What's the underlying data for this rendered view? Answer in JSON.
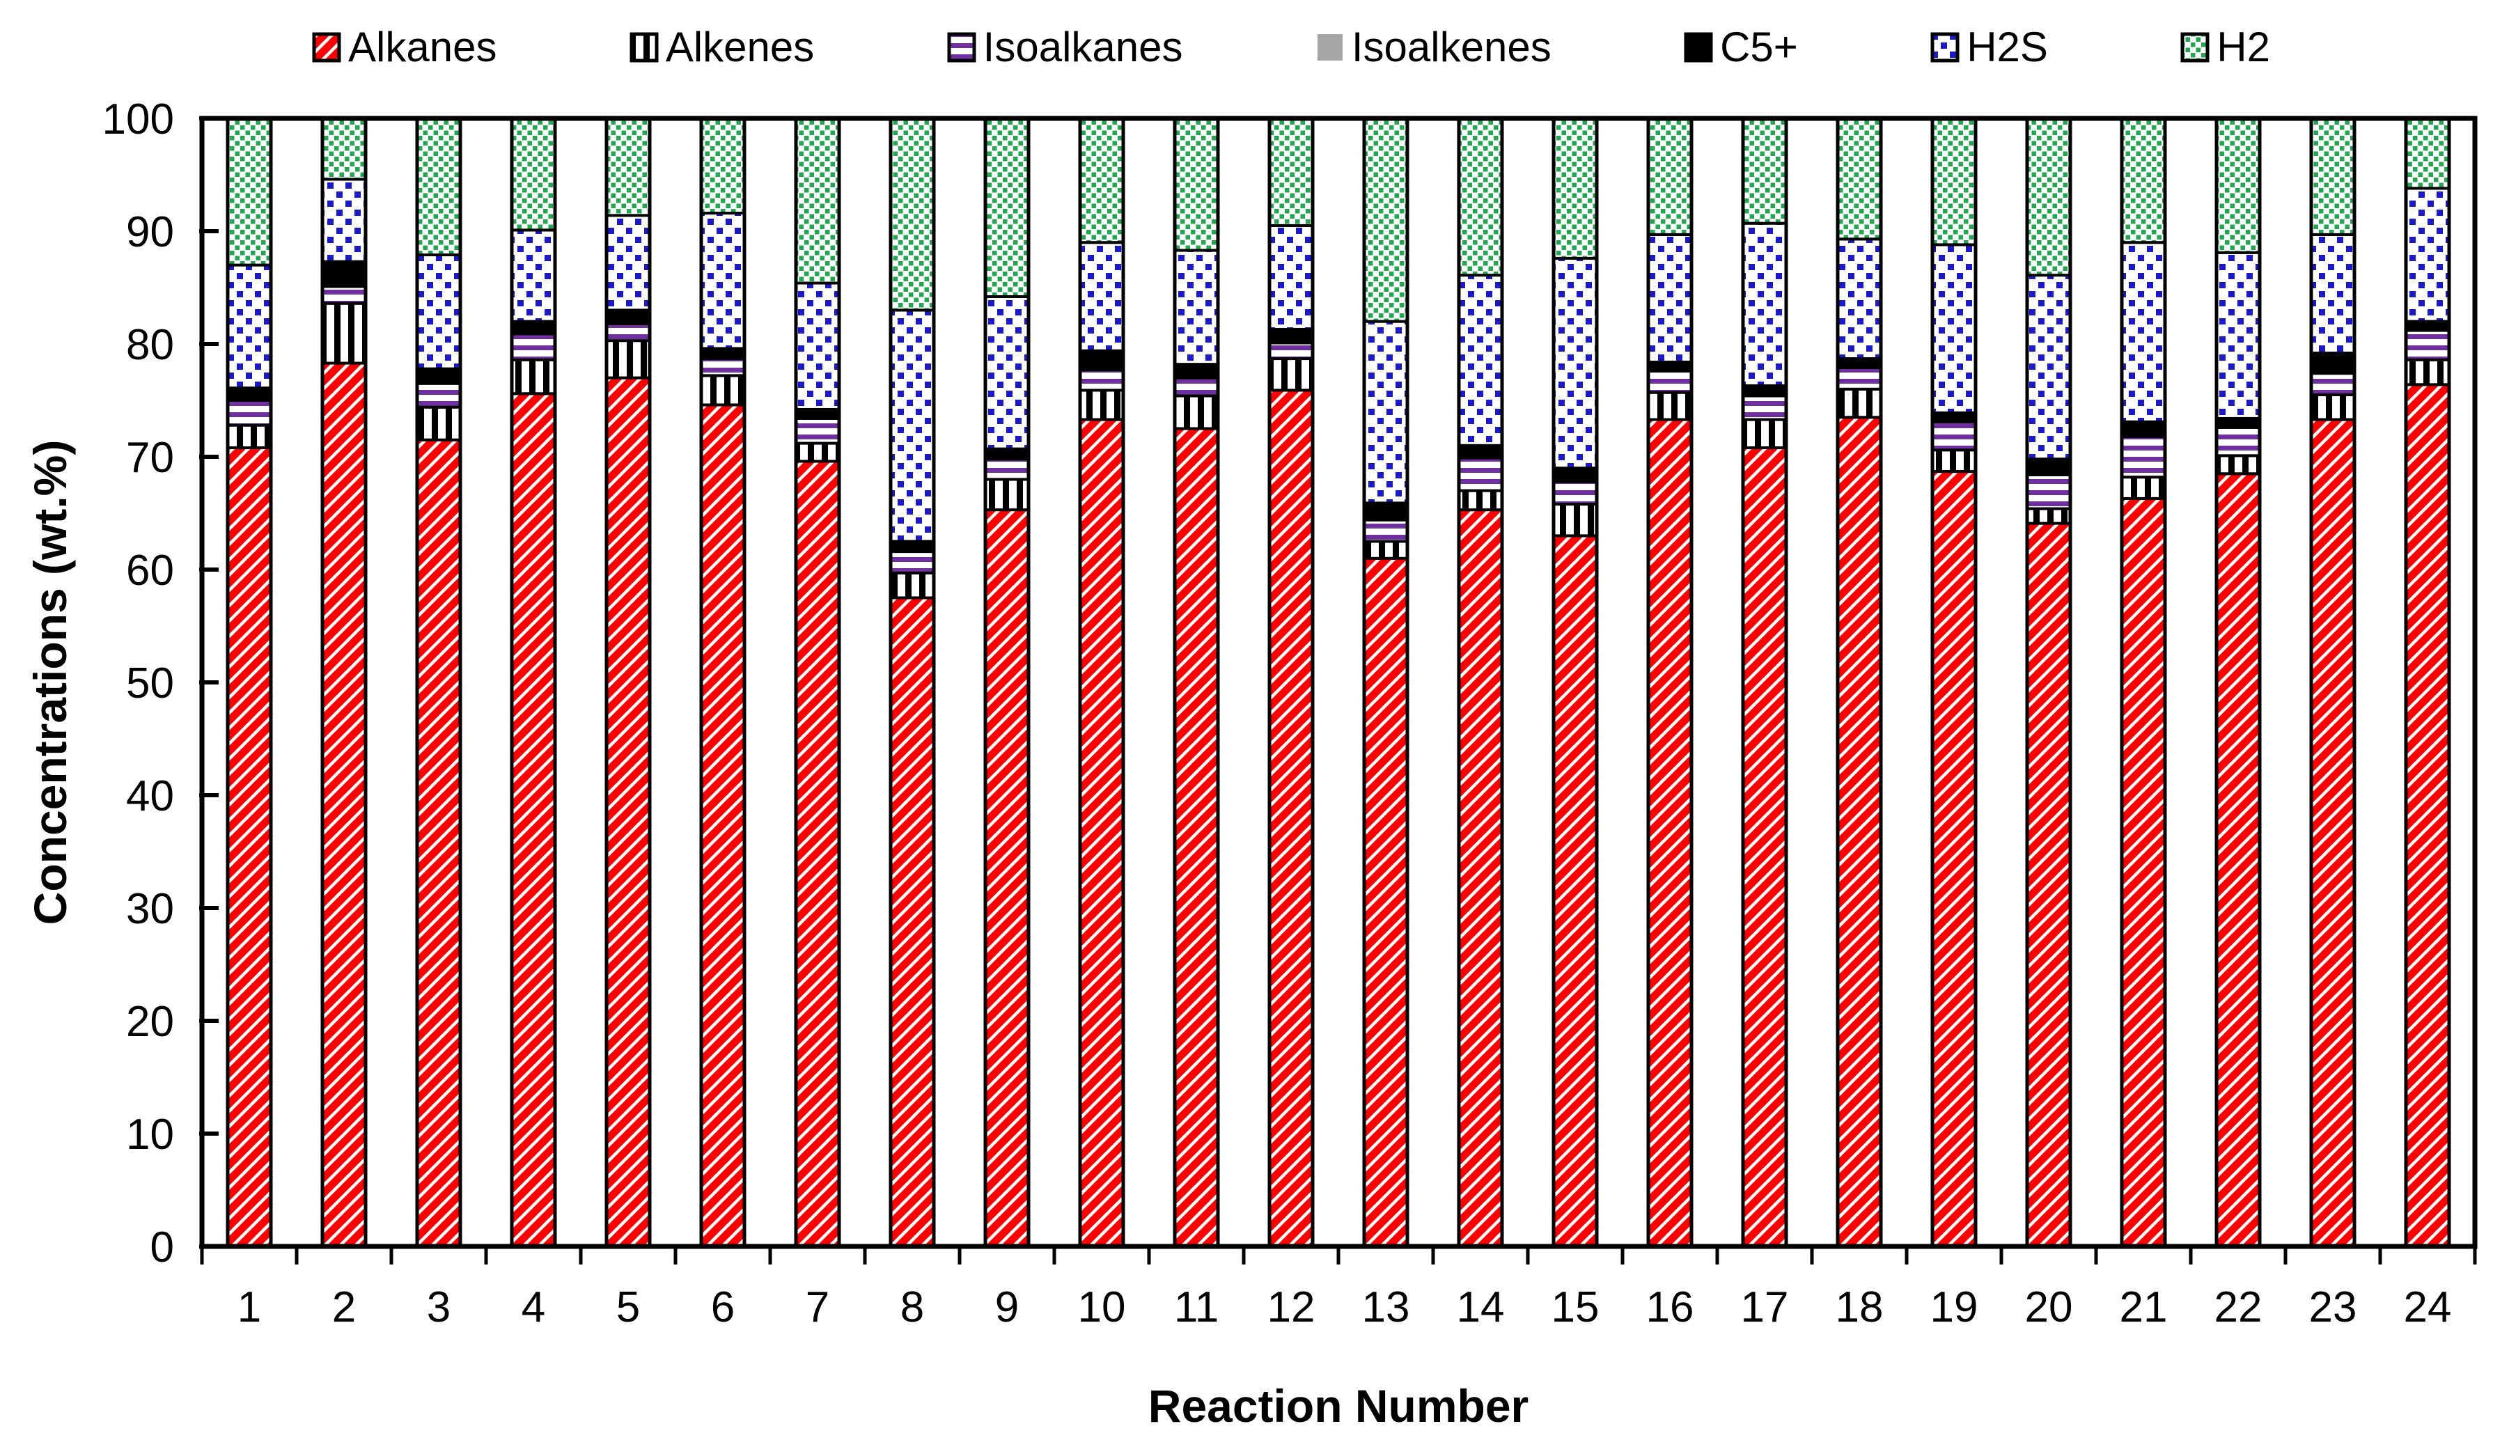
{
  "chart_data": {
    "type": "bar",
    "stacked": true,
    "xlabel": "Reaction Number",
    "ylabel": "Concentrations (wt.%)",
    "ylim": [
      0,
      100
    ],
    "yticks": [
      0,
      10,
      20,
      30,
      40,
      50,
      60,
      70,
      80,
      90,
      100
    ],
    "grid": false,
    "legend_position": "top",
    "categories": [
      "1",
      "2",
      "3",
      "4",
      "5",
      "6",
      "7",
      "8",
      "9",
      "10",
      "11",
      "12",
      "13",
      "14",
      "15",
      "16",
      "17",
      "18",
      "19",
      "20",
      "21",
      "22",
      "23",
      "24"
    ],
    "series": [
      {
        "name": "Alkanes",
        "swatch": "alkanes",
        "values": [
          70.8,
          78.3,
          71.5,
          75.6,
          77.0,
          74.6,
          69.6,
          57.5,
          65.3,
          73.3,
          72.5,
          75.9,
          61.0,
          65.3,
          63.0,
          73.3,
          70.8,
          73.5,
          68.7,
          64.1,
          66.3,
          68.5,
          73.3,
          76.4
        ]
      },
      {
        "name": "Alkenes",
        "swatch": "alkenes",
        "values": [
          2.0,
          5.3,
          2.9,
          3.0,
          3.3,
          2.6,
          1.6,
          2.2,
          2.7,
          2.6,
          2.9,
          2.8,
          1.5,
          1.7,
          2.8,
          2.4,
          2.5,
          2.5,
          1.9,
          1.3,
          1.9,
          1.6,
          2.2,
          2.2
        ]
      },
      {
        "name": "Isoalkanes",
        "swatch": "isoalkanes",
        "values": [
          2.2,
          1.5,
          2.1,
          2.3,
          1.5,
          1.5,
          2.2,
          1.9,
          1.8,
          1.8,
          1.6,
          1.4,
          1.9,
          2.9,
          2.0,
          1.9,
          2.1,
          1.9,
          2.5,
          3.0,
          3.6,
          2.5,
          1.9,
          2.6
        ]
      },
      {
        "name": "Isoalkenes",
        "swatch": "isoalkenes",
        "values": [
          0.2,
          0.2,
          0.2,
          0.2,
          0.2,
          0.2,
          0.2,
          0.2,
          0.2,
          0.2,
          0.2,
          0.2,
          0.2,
          0.2,
          0.2,
          0.2,
          0.2,
          0.2,
          0.2,
          0.2,
          0.2,
          0.2,
          0.2,
          0.2
        ]
      },
      {
        "name": "C5+",
        "swatch": "c5",
        "values": [
          0.9,
          2.0,
          1.1,
          0.9,
          1.0,
          0.7,
          0.6,
          0.7,
          0.7,
          1.5,
          1.0,
          1.0,
          1.3,
          0.9,
          1.0,
          0.6,
          0.7,
          0.6,
          0.6,
          1.2,
          1.1,
          0.6,
          1.6,
          0.6
        ]
      },
      {
        "name": "H2S",
        "swatch": "h2s",
        "values": [
          10.9,
          7.3,
          10.1,
          8.1,
          8.4,
          12.0,
          11.2,
          20.5,
          13.5,
          9.6,
          10.1,
          9.2,
          16.1,
          15.1,
          18.6,
          11.3,
          14.4,
          10.6,
          14.9,
          16.3,
          15.9,
          14.7,
          10.5,
          11.8
        ]
      },
      {
        "name": "H2",
        "swatch": "h2",
        "values": [
          13.0,
          5.4,
          12.1,
          9.9,
          8.6,
          8.4,
          14.6,
          17.0,
          15.8,
          11.0,
          11.7,
          9.5,
          18.0,
          13.9,
          12.4,
          10.3,
          9.3,
          10.7,
          11.2,
          13.9,
          11.0,
          11.9,
          10.3,
          6.2
        ]
      }
    ],
    "colors": {
      "red": "#FF0000",
      "black": "#000000",
      "purple": "#7030A0",
      "gray": "#A6A6A6",
      "blue": "#1A1ACC",
      "green": "#1FA84F",
      "axis": "#000000",
      "background": "#FFFFFF"
    }
  }
}
